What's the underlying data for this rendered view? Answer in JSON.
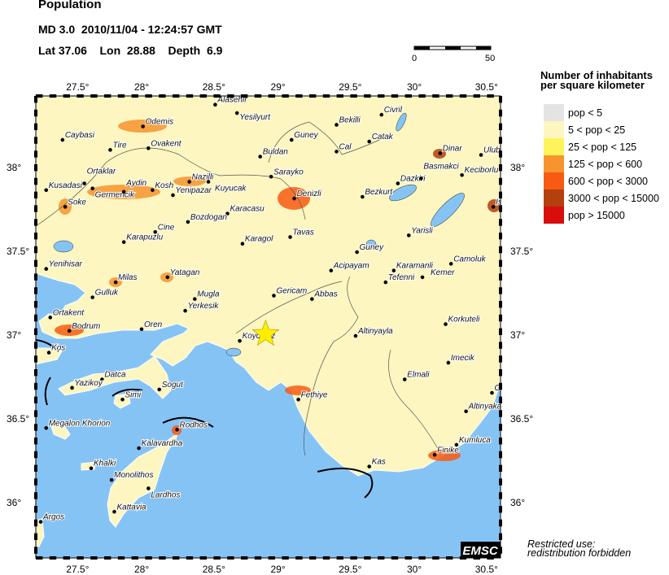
{
  "header": {
    "title": "Population",
    "event_line": "MD 3.0  2010/11/04 - 12:24:57 GMT",
    "location_line": "Lat 37.06    Lon  28.88    Depth  6.9"
  },
  "scale_bar": {
    "start_label": "0",
    "end_label": "50"
  },
  "legend": {
    "title_line1": "Number of inhabitants",
    "title_line2": "per square kilometer",
    "items": [
      {
        "label": "pop < 5",
        "color": "#e4e4e4"
      },
      {
        "label": "5 < pop < 25",
        "color": "#fdf6c0"
      },
      {
        "label": "25 < pop < 125",
        "color": "#fdf35a"
      },
      {
        "label": "125 < pop < 600",
        "color": "#f7942f"
      },
      {
        "label": "600 < pop < 3000",
        "color": "#f75a12"
      },
      {
        "label": "3000 < pop < 15000",
        "color": "#b3400e"
      },
      {
        "label": "pop > 15000",
        "color": "#d80d0d"
      }
    ]
  },
  "axes": {
    "lon_ticks": [
      "27.5°",
      "28°",
      "28.5°",
      "29°",
      "29.5°",
      "30°",
      "30.5°"
    ],
    "lat_ticks": [
      "38°",
      "37.5°",
      "37°",
      "36.5°",
      "36°"
    ]
  },
  "epicenter": {
    "lat": 37.06,
    "lon": 28.88,
    "marker": "star-icon",
    "color": "#ffee00"
  },
  "colors": {
    "sea": "#86c3f5",
    "land": "#fdf6c0"
  },
  "cities": [
    {
      "name": "Alasehir",
      "lon": 28.51,
      "lat": 38.38
    },
    {
      "name": "Yesilyurt",
      "lon": 28.67,
      "lat": 38.33
    },
    {
      "name": "Odemis",
      "lon": 27.98,
      "lat": 38.25
    },
    {
      "name": "Caybasi",
      "lon": 27.39,
      "lat": 38.17
    },
    {
      "name": "Tire",
      "lon": 27.74,
      "lat": 38.11
    },
    {
      "name": "Ovakent",
      "lon": 28.02,
      "lat": 38.12
    },
    {
      "name": "Buldan",
      "lon": 28.84,
      "lat": 38.07
    },
    {
      "name": "Guney",
      "lon": 29.07,
      "lat": 38.17
    },
    {
      "name": "Bekilli",
      "lon": 29.4,
      "lat": 38.26
    },
    {
      "name": "Civril",
      "lon": 29.73,
      "lat": 38.32
    },
    {
      "name": "Catak",
      "lon": 29.64,
      "lat": 38.16
    },
    {
      "name": "Cal",
      "lon": 29.4,
      "lat": 38.1
    },
    {
      "name": "Dinar",
      "lon": 30.16,
      "lat": 38.09
    },
    {
      "name": "Ulub",
      "lon": 30.46,
      "lat": 38.08
    },
    {
      "name": "Kusadasi",
      "lon": 27.27,
      "lat": 37.87
    },
    {
      "name": "Ortaklar",
      "lon": 27.55,
      "lat": 37.91
    },
    {
      "name": "Germencik",
      "lon": 27.61,
      "lat": 37.88
    },
    {
      "name": "Aydin",
      "lon": 27.84,
      "lat": 37.86
    },
    {
      "name": "Kosh",
      "lon": 28.05,
      "lat": 37.87
    },
    {
      "name": "Nazilli",
      "lon": 28.32,
      "lat": 37.92
    },
    {
      "name": "Kuyucak",
      "lon": 28.46,
      "lat": 37.92
    },
    {
      "name": "Yenipazar",
      "lon": 28.2,
      "lat": 37.84
    },
    {
      "name": "Sarayko",
      "lon": 28.92,
      "lat": 37.95
    },
    {
      "name": "Denizli",
      "lon": 29.09,
      "lat": 37.82
    },
    {
      "name": "Soke",
      "lon": 27.41,
      "lat": 37.77
    },
    {
      "name": "Karacasu",
      "lon": 28.6,
      "lat": 37.73
    },
    {
      "name": "Bozdogan",
      "lon": 28.31,
      "lat": 37.68
    },
    {
      "name": "Bezkurt",
      "lon": 29.59,
      "lat": 37.83
    },
    {
      "name": "Dazkiri",
      "lon": 29.85,
      "lat": 37.91
    },
    {
      "name": "Basmakci",
      "lon": 30.02,
      "lat": 37.94
    },
    {
      "name": "Keciborlu",
      "lon": 30.32,
      "lat": 37.96
    },
    {
      "name": "Is",
      "lon": 30.55,
      "lat": 37.77
    },
    {
      "name": "Cine",
      "lon": 28.07,
      "lat": 37.62
    },
    {
      "name": "Karapuzlu",
      "lon": 27.84,
      "lat": 37.56
    },
    {
      "name": "Karagol",
      "lon": 28.71,
      "lat": 37.55
    },
    {
      "name": "Tavas",
      "lon": 29.06,
      "lat": 37.59
    },
    {
      "name": "Yarisli",
      "lon": 29.93,
      "lat": 37.6
    },
    {
      "name": "Guney",
      "lon": 29.55,
      "lat": 37.5
    },
    {
      "name": "Camoluk",
      "lon": 30.24,
      "lat": 37.43
    },
    {
      "name": "Acipayam",
      "lon": 29.36,
      "lat": 37.39
    },
    {
      "name": "Karamanli",
      "lon": 29.82,
      "lat": 37.39
    },
    {
      "name": "Tefenni",
      "lon": 29.76,
      "lat": 37.32
    },
    {
      "name": "Kemer",
      "lon": 30.03,
      "lat": 37.35
    },
    {
      "name": "Yenihisar",
      "lon": 27.27,
      "lat": 37.4
    },
    {
      "name": "Milas",
      "lon": 27.78,
      "lat": 37.32
    },
    {
      "name": "Yatagan",
      "lon": 28.16,
      "lat": 37.35
    },
    {
      "name": "Gulluk",
      "lon": 27.61,
      "lat": 37.23
    },
    {
      "name": "Mugla",
      "lon": 28.36,
      "lat": 37.22
    },
    {
      "name": "Yerkesik",
      "lon": 28.29,
      "lat": 37.15
    },
    {
      "name": "Gericam",
      "lon": 28.94,
      "lat": 37.24
    },
    {
      "name": "Abbas",
      "lon": 29.22,
      "lat": 37.22
    },
    {
      "name": "Ortakent",
      "lon": 27.3,
      "lat": 37.11
    },
    {
      "name": "Bodrum",
      "lon": 27.44,
      "lat": 37.03
    },
    {
      "name": "Oren",
      "lon": 27.97,
      "lat": 37.04
    },
    {
      "name": "Korkuteli",
      "lon": 30.2,
      "lat": 37.07
    },
    {
      "name": "Koycegiz",
      "lon": 28.69,
      "lat": 36.97
    },
    {
      "name": "Altinyayla",
      "lon": 29.54,
      "lat": 37.0
    },
    {
      "name": "Kos",
      "lon": 27.29,
      "lat": 36.9
    },
    {
      "name": "Imecik",
      "lon": 30.22,
      "lat": 36.84
    },
    {
      "name": "Datca",
      "lon": 27.68,
      "lat": 36.74
    },
    {
      "name": "Yazikoy",
      "lon": 27.46,
      "lat": 36.69
    },
    {
      "name": "Elmali",
      "lon": 29.9,
      "lat": 36.74
    },
    {
      "name": "Fethiye",
      "lon": 29.12,
      "lat": 36.62
    },
    {
      "name": "Sogut",
      "lon": 28.1,
      "lat": 36.68
    },
    {
      "name": "Simi",
      "lon": 27.83,
      "lat": 36.62
    },
    {
      "name": "G",
      "lon": 30.54,
      "lat": 36.66
    },
    {
      "name": "Altinyaka",
      "lon": 30.35,
      "lat": 36.55
    },
    {
      "name": "Megalon Khorion",
      "lon": 27.27,
      "lat": 36.45
    },
    {
      "name": "Rodhos",
      "lon": 28.23,
      "lat": 36.44
    },
    {
      "name": "Kalavardha",
      "lon": 27.95,
      "lat": 36.33
    },
    {
      "name": "Kumluca",
      "lon": 30.28,
      "lat": 36.35
    },
    {
      "name": "Finike",
      "lon": 30.12,
      "lat": 36.29
    },
    {
      "name": "Khalki",
      "lon": 27.6,
      "lat": 36.21
    },
    {
      "name": "Kas",
      "lon": 29.64,
      "lat": 36.22
    },
    {
      "name": "Monolithos",
      "lon": 27.75,
      "lat": 36.14
    },
    {
      "name": "Lardhos",
      "lon": 28.02,
      "lat": 36.09
    },
    {
      "name": "Kattavia",
      "lon": 27.77,
      "lat": 35.95
    },
    {
      "name": "Argos",
      "lon": 27.23,
      "lat": 35.89
    }
  ],
  "logo": "EMSC",
  "notice_line1": "Restricted use:",
  "notice_line2": "redistribution forbidden"
}
